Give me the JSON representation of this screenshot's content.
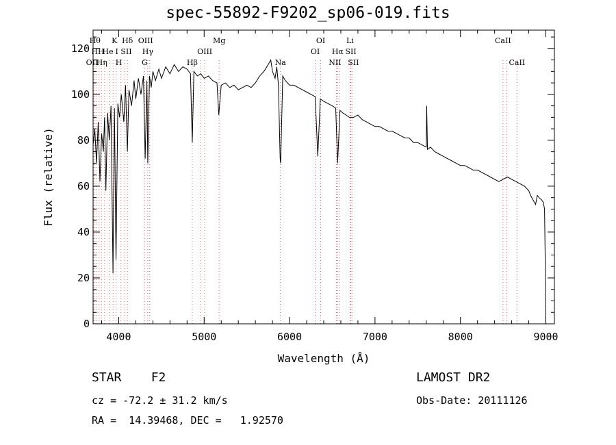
{
  "chart_data": {
    "type": "line",
    "title": "spec-55892-F9202_sp06-019.fits",
    "xlabel": "Wavelength (Å)",
    "ylabel": "Flux (relative)",
    "xlim": [
      3700,
      9100
    ],
    "ylim": [
      0,
      128
    ],
    "x_ticks": [
      "4000",
      "5000",
      "6000",
      "7000",
      "8000",
      "9000"
    ],
    "y_ticks": [
      "0",
      "20",
      "40",
      "60",
      "80",
      "100",
      "120"
    ],
    "grid": false,
    "series": [
      {
        "color": "#000000",
        "x": [
          3700,
          3720,
          3740,
          3760,
          3780,
          3800,
          3820,
          3835,
          3850,
          3870,
          3890,
          3910,
          3933,
          3950,
          3968,
          3990,
          4010,
          4030,
          4060,
          4080,
          4101,
          4120,
          4150,
          4180,
          4200,
          4230,
          4260,
          4290,
          4310,
          4330,
          4340,
          4360,
          4380,
          4400,
          4430,
          4470,
          4500,
          4550,
          4600,
          4650,
          4700,
          4750,
          4800,
          4840,
          4861,
          4880,
          4920,
          4960,
          5000,
          5050,
          5100,
          5150,
          5172,
          5200,
          5250,
          5300,
          5350,
          5400,
          5450,
          5500,
          5550,
          5600,
          5650,
          5700,
          5750,
          5780,
          5800,
          5830,
          5850,
          5870,
          5890,
          5896,
          5920,
          5950,
          6000,
          6050,
          6100,
          6150,
          6200,
          6250,
          6300,
          6330,
          6360,
          6400,
          6450,
          6500,
          6540,
          6563,
          6590,
          6620,
          6660,
          6700,
          6750,
          6800,
          6850,
          6900,
          6950,
          7000,
          7050,
          7100,
          7150,
          7200,
          7250,
          7300,
          7350,
          7400,
          7450,
          7500,
          7550,
          7600,
          7605,
          7615,
          7650,
          7700,
          7750,
          7800,
          7850,
          7900,
          7950,
          8000,
          8050,
          8100,
          8150,
          8200,
          8250,
          8300,
          8350,
          8400,
          8450,
          8500,
          8550,
          8600,
          8650,
          8700,
          8750,
          8800,
          8820,
          8850,
          8880,
          8900,
          8920,
          8950,
          8970,
          8985,
          8995,
          9000,
          9003
        ],
        "y": [
          78,
          85,
          70,
          88,
          62,
          83,
          75,
          90,
          58,
          92,
          80,
          95,
          22,
          94,
          28,
          96,
          90,
          100,
          88,
          104,
          75,
          102,
          95,
          106,
          98,
          107,
          100,
          108,
          72,
          106,
          70,
          108,
          103,
          110,
          106,
          111,
          107,
          112,
          109,
          113,
          110,
          112,
          111,
          109,
          79,
          110,
          108,
          109,
          107,
          108,
          106,
          105,
          91,
          104,
          105,
          103,
          104,
          102,
          103,
          104,
          103,
          105,
          108,
          110,
          113,
          115,
          110,
          107,
          112,
          104,
          72,
          70,
          108,
          106,
          104,
          104,
          103,
          102,
          101,
          100,
          99,
          73,
          98,
          97,
          96,
          95,
          94,
          70,
          93,
          92,
          91,
          90,
          90,
          91,
          89,
          88,
          87,
          86,
          86,
          85,
          84,
          84,
          83,
          82,
          81,
          81,
          79,
          79,
          78,
          77,
          95,
          76,
          77,
          75,
          74,
          73,
          72,
          71,
          70,
          69,
          69,
          68,
          67,
          67,
          66,
          65,
          64,
          63,
          62,
          63,
          64,
          63,
          62,
          61,
          60,
          58,
          56,
          54,
          52,
          56,
          55,
          54,
          53,
          50,
          20,
          0,
          0
        ]
      }
    ],
    "lines": [
      {
        "w": 3704,
        "label": "OII",
        "row": 2,
        "dx": -2
      },
      {
        "w": 3722,
        "label": "Hθ",
        "row": 0,
        "dx": 0
      },
      {
        "w": 3740,
        "label": "HH",
        "row": 1,
        "dx": 2
      },
      {
        "w": 3770,
        "label": "Hη",
        "row": 2,
        "dx": 4
      },
      {
        "w": 3798,
        "label": "",
        "row": 0,
        "dx": 0
      },
      {
        "w": 3835,
        "label": "",
        "row": 0,
        "dx": 0
      },
      {
        "w": 3889,
        "label": "He",
        "row": 1,
        "dx": -2
      },
      {
        "w": 3934,
        "label": "K",
        "row": 0,
        "dx": 2
      },
      {
        "w": 3969,
        "label": "H",
        "row": 2,
        "dx": 4
      },
      {
        "w": 4026,
        "label": "I",
        "row": 1,
        "dx": -6
      },
      {
        "w": 4072,
        "label": "SII",
        "row": 1,
        "dx": 2
      },
      {
        "w": 4102,
        "label": "Hδ",
        "row": 0,
        "dx": 0
      },
      {
        "w": 4304,
        "label": "G",
        "row": 2,
        "dx": 0
      },
      {
        "w": 4340,
        "label": "Hγ",
        "row": 1,
        "dx": 0
      },
      {
        "w": 4363,
        "label": "OIII",
        "row": 0,
        "dx": -6
      },
      {
        "w": 4861,
        "label": "Hβ",
        "row": 2,
        "dx": 0
      },
      {
        "w": 4959,
        "label": "",
        "row": 0,
        "dx": 0
      },
      {
        "w": 5007,
        "label": "OIII",
        "row": 1,
        "dx": 0
      },
      {
        "w": 5175,
        "label": "Mg",
        "row": 0,
        "dx": 0
      },
      {
        "w": 5893,
        "label": "Na",
        "row": 2,
        "dx": 0
      },
      {
        "w": 6300,
        "label": "OI",
        "row": 1,
        "dx": 0
      },
      {
        "w": 6364,
        "label": "OI",
        "row": 0,
        "dx": 0
      },
      {
        "w": 6548,
        "label": "NII",
        "row": 2,
        "dx": -2
      },
      {
        "w": 6563,
        "label": "Hα",
        "row": 1,
        "dx": 0
      },
      {
        "w": 6583,
        "label": "",
        "row": 0,
        "dx": 0
      },
      {
        "w": 6708,
        "label": "Li",
        "row": 0,
        "dx": 0
      },
      {
        "w": 6717,
        "label": "SII",
        "row": 1,
        "dx": 0
      },
      {
        "w": 6731,
        "label": "SII",
        "row": 2,
        "dx": 2
      },
      {
        "w": 8498,
        "label": "CaII",
        "row": 0,
        "dx": 0
      },
      {
        "w": 8542,
        "label": "",
        "row": 0,
        "dx": 0
      },
      {
        "w": 8662,
        "label": "CaII",
        "row": 2,
        "dx": 0
      }
    ]
  },
  "info": {
    "star": "STAR    F2",
    "cz": "cz = -72.2 ± 31.2 km/s",
    "radec": "RA =  14.39468, DEC =   1.92570",
    "survey": "LAMOST DR2",
    "obsdate": "Obs-Date: 20111126"
  },
  "colors": {
    "axis": "#000000",
    "spectrum": "#000000",
    "line_markers": "#e06060"
  }
}
